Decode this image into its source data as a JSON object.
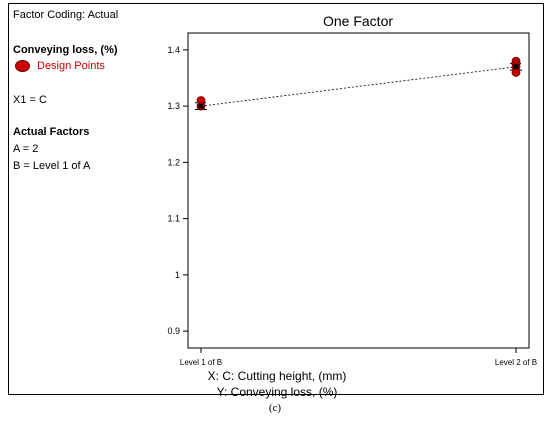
{
  "factor_coding": "Factor Coding: Actual",
  "legend": {
    "response": "Conveying loss,  (%)",
    "design_points_label": "Design Points",
    "marker_color": "#cc0000"
  },
  "x1_label": "X1 = C",
  "actual_factors": {
    "heading": "Actual Factors",
    "a": "A = 2",
    "b": "B = Level 1 of A"
  },
  "caption": "(c)",
  "chart_data": {
    "type": "scatter",
    "title": "One Factor",
    "xlabel": "X: C: Cutting height,  (mm)",
    "ylabel": "Y: Conveying loss,  (%)",
    "categories": [
      "Level 1 of B",
      "Level 2 of B"
    ],
    "ylim": [
      0.87,
      1.43
    ],
    "yticks": [
      0.9,
      1,
      1.1,
      1.2,
      1.3,
      1.4
    ],
    "ytick_labels": [
      "0.9",
      "1",
      "1.1",
      "1.2",
      "1.3",
      "1.4"
    ],
    "grid": false,
    "predicted": [
      1.3,
      1.37
    ],
    "interval": [
      [
        1.294,
        1.306
      ],
      [
        1.364,
        1.376
      ]
    ],
    "design_points": [
      {
        "x": "Level 1 of B",
        "y": 1.31
      },
      {
        "x": "Level 1 of B",
        "y": 1.3
      },
      {
        "x": "Level 2 of B",
        "y": 1.38
      },
      {
        "x": "Level 2 of B",
        "y": 1.375
      },
      {
        "x": "Level 2 of B",
        "y": 1.37
      },
      {
        "x": "Level 2 of B",
        "y": 1.36
      }
    ],
    "point_color": "#cc0000",
    "line_color": "#000000"
  }
}
